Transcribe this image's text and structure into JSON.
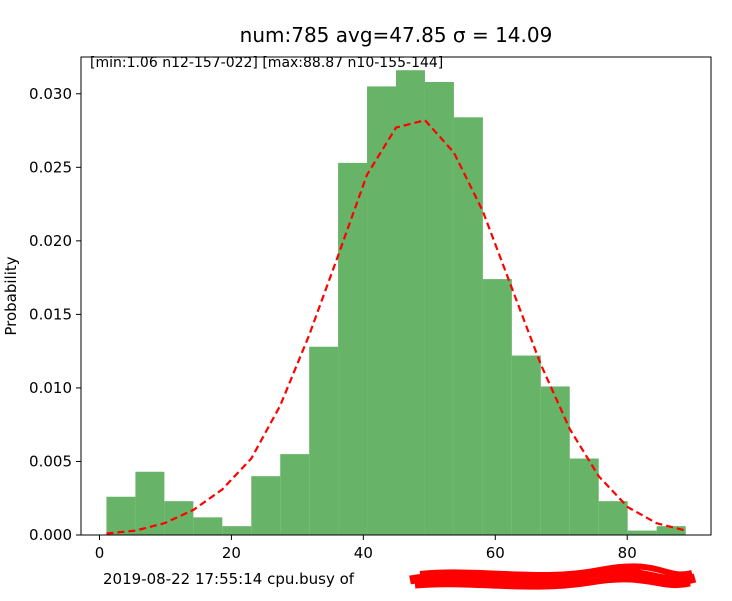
{
  "chart_data": {
    "type": "histogram",
    "title": "num:785 avg=47.85 σ = 14.09",
    "annotation": "[min:1.06 n12-157-022] [max:88.87 n10-155-144]",
    "xlabel": "2019-08-22 17:55:14 cpu.busy of",
    "ylabel": "Probability",
    "xlim": [
      -2.8,
      92.7
    ],
    "ylim": [
      0,
      0.0325
    ],
    "x_ticks": [
      0,
      20,
      40,
      60,
      80
    ],
    "y_ticks": [
      0.0,
      0.005,
      0.01,
      0.015,
      0.02,
      0.025,
      0.03
    ],
    "y_tick_labels": [
      "0.000",
      "0.005",
      "0.010",
      "0.015",
      "0.020",
      "0.025",
      "0.030"
    ],
    "bar_color": "#4ca64c",
    "curve_color": "#ff0000",
    "bins": {
      "edges": [
        1.06,
        5.45,
        9.84,
        14.23,
        18.62,
        23.01,
        27.4,
        31.79,
        36.17,
        40.56,
        44.95,
        49.34,
        53.73,
        58.12,
        62.51,
        66.9,
        71.29,
        75.68,
        80.07,
        84.46,
        88.87
      ],
      "values": [
        0.0026,
        0.0043,
        0.0023,
        0.0012,
        0.0006,
        0.004,
        0.0055,
        0.0128,
        0.0253,
        0.0305,
        0.0316,
        0.0308,
        0.0284,
        0.0174,
        0.0122,
        0.0101,
        0.0052,
        0.0023,
        0.0003,
        0.0006
      ]
    },
    "fit_curve": {
      "style": "dashed",
      "x": [
        1.06,
        5.45,
        9.84,
        14.23,
        18.62,
        23.01,
        27.4,
        31.79,
        36.17,
        40.56,
        44.95,
        49.34,
        53.73,
        58.12,
        62.51,
        66.9,
        71.29,
        75.68,
        80.07,
        84.46,
        88.87
      ],
      "y": [
        0.0001,
        0.0003,
        0.0008,
        0.0017,
        0.0031,
        0.0052,
        0.0088,
        0.0136,
        0.019,
        0.0245,
        0.0277,
        0.0282,
        0.026,
        0.022,
        0.0168,
        0.0116,
        0.0072,
        0.004,
        0.0019,
        0.0008,
        0.0003
      ]
    },
    "grid": false,
    "legend": "none"
  }
}
